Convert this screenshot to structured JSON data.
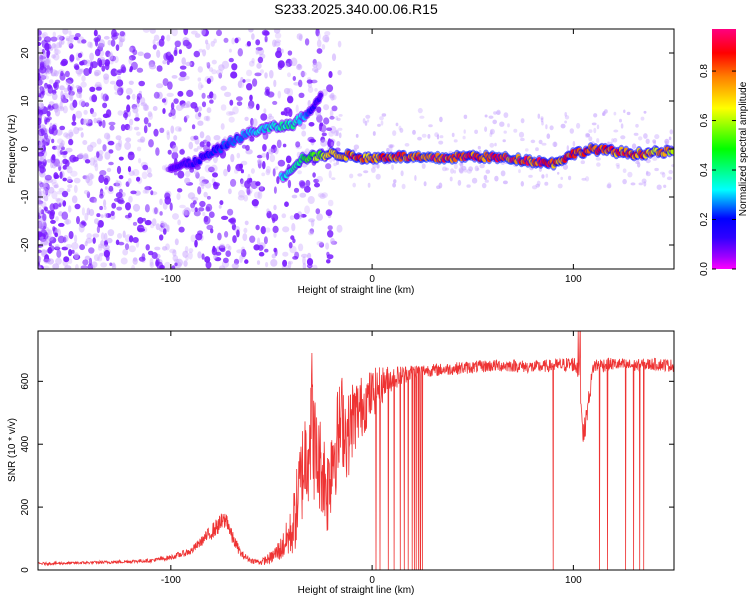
{
  "chart_data": [
    {
      "type": "heatmap",
      "title": "S233.2025.340.00.06.R15",
      "xlabel": "Height of straight line (km)",
      "ylabel": "Frequency (Hz)",
      "xlim": [
        -166,
        150
      ],
      "ylim": [
        -25,
        25
      ],
      "xticks": [
        -100,
        0,
        100
      ],
      "xtick_labels": [
        "-100",
        "0",
        "100"
      ],
      "yticks": [
        -20,
        -10,
        0,
        10,
        20
      ],
      "ytick_labels": [
        "-20",
        "-10",
        "0",
        "10",
        "20"
      ],
      "colorbar": {
        "label": "Normalized spectral amplitude",
        "range": [
          0,
          0.97
        ],
        "ticks": [
          0.0,
          0.2,
          0.4,
          0.6,
          0.8
        ],
        "tick_labels": [
          "0.0",
          "0.2",
          "0.4",
          "0.6",
          "0.8"
        ],
        "colormap": "rainbow (magenta-blue-cyan-green-yellow-red-magenta)"
      },
      "ridge": [
        {
          "x": -100,
          "y": -4,
          "amp": 0.1
        },
        {
          "x": -90,
          "y": -3,
          "amp": 0.15
        },
        {
          "x": -80,
          "y": -1,
          "amp": 0.2
        },
        {
          "x": -70,
          "y": 1.5,
          "amp": 0.25
        },
        {
          "x": -60,
          "y": 3.5,
          "amp": 0.3
        },
        {
          "x": -50,
          "y": 4.5,
          "amp": 0.35
        },
        {
          "x": -40,
          "y": 5,
          "amp": 0.4
        },
        {
          "x": -30,
          "y": 8,
          "amp": 0.2
        },
        {
          "x": -25,
          "y": 12,
          "amp": 0.1
        },
        {
          "x": -45,
          "y": -6,
          "amp": 0.3
        },
        {
          "x": -35,
          "y": -2,
          "amp": 0.45
        },
        {
          "x": -20,
          "y": -1,
          "amp": 0.7
        },
        {
          "x": -10,
          "y": -1.5,
          "amp": 0.85
        },
        {
          "x": 0,
          "y": -2,
          "amp": 0.8
        },
        {
          "x": 10,
          "y": -1.5,
          "amp": 0.85
        },
        {
          "x": 30,
          "y": -2,
          "amp": 0.9
        },
        {
          "x": 50,
          "y": -1.5,
          "amp": 0.85
        },
        {
          "x": 70,
          "y": -2,
          "amp": 0.9
        },
        {
          "x": 90,
          "y": -3,
          "amp": 0.85
        },
        {
          "x": 100,
          "y": -1,
          "amp": 0.8
        },
        {
          "x": 110,
          "y": 0,
          "amp": 0.85
        },
        {
          "x": 130,
          "y": -1,
          "amp": 0.8
        },
        {
          "x": 150,
          "y": -0.5,
          "amp": 0.7
        }
      ]
    },
    {
      "type": "line",
      "xlabel": "Height of straight line (km)",
      "ylabel": "SNR (10 * v/v)",
      "xlim": [
        -166,
        150
      ],
      "ylim": [
        0,
        760
      ],
      "xticks": [
        -100,
        0,
        100
      ],
      "xtick_labels": [
        "-100",
        "0",
        "100"
      ],
      "yticks": [
        0,
        200,
        400,
        600
      ],
      "ytick_labels": [
        "0",
        "200",
        "400",
        "600"
      ],
      "color": "#ee3333",
      "series": [
        {
          "name": "SNR",
          "x": [
            -166,
            -150,
            -130,
            -110,
            -100,
            -90,
            -85,
            -80,
            -75,
            -72,
            -70,
            -65,
            -60,
            -55,
            -50,
            -45,
            -40,
            -38,
            -35,
            -32,
            -30,
            -28,
            -25,
            -22,
            -20,
            -17,
            -15,
            -12,
            -10,
            -5,
            0,
            5,
            10,
            15,
            20,
            25,
            30,
            40,
            50,
            60,
            70,
            80,
            90,
            100,
            103,
            105,
            110,
            120,
            130,
            140,
            150
          ],
          "values": [
            20,
            22,
            25,
            30,
            40,
            60,
            90,
            120,
            150,
            160,
            110,
            50,
            30,
            25,
            40,
            70,
            120,
            180,
            300,
            400,
            500,
            350,
            330,
            250,
            370,
            420,
            480,
            420,
            480,
            520,
            560,
            590,
            610,
            620,
            630,
            635,
            635,
            640,
            645,
            650,
            650,
            645,
            650,
            655,
            640,
            420,
            650,
            655,
            650,
            655,
            650
          ],
          "noise": [
            4,
            4,
            5,
            6,
            8,
            12,
            15,
            25,
            30,
            30,
            25,
            12,
            8,
            10,
            20,
            40,
            80,
            120,
            160,
            200,
            220,
            180,
            150,
            150,
            180,
            160,
            150,
            140,
            130,
            100,
            80,
            60,
            40,
            30,
            25,
            20,
            20,
            20,
            20,
            20,
            20,
            20,
            20,
            25,
            40,
            40,
            25,
            20,
            20,
            20,
            20
          ],
          "dropouts": [
            2,
            4,
            8,
            11,
            14,
            16,
            18,
            20,
            21,
            22,
            23,
            24,
            25,
            90,
            113,
            117,
            126,
            130,
            133,
            135
          ]
        }
      ]
    }
  ]
}
